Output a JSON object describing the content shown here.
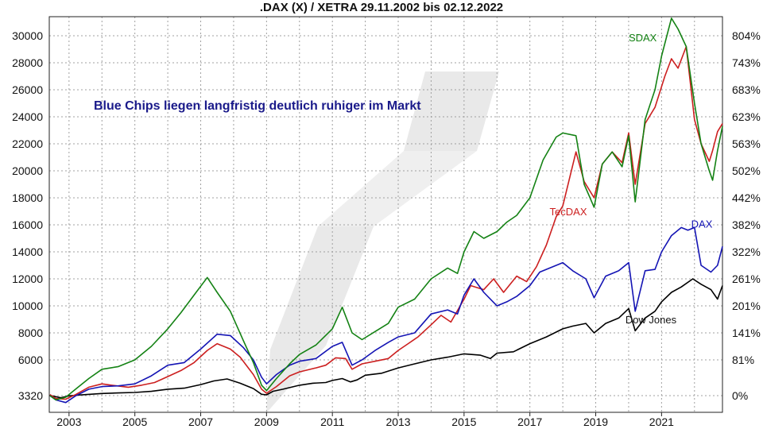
{
  "chart_data": {
    "type": "line",
    "title": ".DAX (X) / XETRA 29.11.2002 bis 02.12.2022",
    "annotation": "Blue Chips liegen langfristig deutlich ruhiger im Markt",
    "x_range": [
      2002.4,
      2022.85
    ],
    "x_ticks": [
      "2003",
      "2005",
      "2007",
      "2009",
      "2011",
      "2013",
      "2015",
      "2017",
      "2019",
      "2021"
    ],
    "y_left_ticks": [
      "30000",
      "28000",
      "26000",
      "24000",
      "22000",
      "20000",
      "18000",
      "16000",
      "14000",
      "12000",
      "10000",
      "8000",
      "6000",
      "3320"
    ],
    "y_right_ticks": [
      "804%",
      "743%",
      "683%",
      "623%",
      "563%",
      "502%",
      "442%",
      "382%",
      "322%",
      "261%",
      "201%",
      "141%",
      "81%",
      "0%"
    ],
    "grid": true,
    "series": [
      {
        "name": "Dow Jones",
        "color": "#000000",
        "label_x": 2019.9,
        "label_y": 8700,
        "x": [
          2002.42,
          2002.75,
          2003.0,
          2003.2,
          2003.5,
          2004.0,
          2004.5,
          2005.0,
          2005.5,
          2006.0,
          2006.5,
          2007.0,
          2007.4,
          2007.8,
          2008.2,
          2008.6,
          2008.85,
          2009.0,
          2009.2,
          2009.5,
          2010.0,
          2010.4,
          2010.8,
          2011.0,
          2011.3,
          2011.55,
          2011.75,
          2012.0,
          2012.5,
          2013.0,
          2013.5,
          2014.0,
          2014.5,
          2015.0,
          2015.5,
          2015.8,
          2016.0,
          2016.5,
          2017.0,
          2017.5,
          2018.0,
          2018.3,
          2018.7,
          2018.95,
          2019.3,
          2019.7,
          2020.0,
          2020.2,
          2020.5,
          2020.8,
          2021.0,
          2021.3,
          2021.6,
          2021.95,
          2022.2,
          2022.5,
          2022.7,
          2022.85
        ],
        "y": [
          3330,
          3160,
          3300,
          3350,
          3400,
          3480,
          3520,
          3560,
          3640,
          3800,
          3880,
          4150,
          4420,
          4570,
          4250,
          3850,
          3420,
          3380,
          3650,
          3800,
          4100,
          4250,
          4300,
          4460,
          4600,
          4350,
          4500,
          4850,
          5000,
          5400,
          5700,
          6000,
          6200,
          6450,
          6350,
          6100,
          6500,
          6600,
          7200,
          7700,
          8300,
          8500,
          8700,
          8000,
          8700,
          9100,
          9800,
          8150,
          9100,
          9600,
          10300,
          11000,
          11400,
          12000,
          11600,
          11200,
          10500,
          11500
        ]
      },
      {
        "name": "TecDAX",
        "color": "#cc1f1f",
        "label_x": 2017.6,
        "label_y": 16700,
        "x": [
          2002.42,
          2002.6,
          2002.9,
          2003.2,
          2003.6,
          2004.0,
          2004.3,
          2004.8,
          2005.2,
          2005.6,
          2006.0,
          2006.4,
          2006.8,
          2007.2,
          2007.5,
          2007.9,
          2008.2,
          2008.6,
          2008.85,
          2009.0,
          2009.3,
          2009.7,
          2010.0,
          2010.5,
          2010.8,
          2011.1,
          2011.4,
          2011.6,
          2011.9,
          2012.3,
          2012.7,
          2013.0,
          2013.3,
          2013.6,
          2014.0,
          2014.3,
          2014.6,
          2015.0,
          2015.2,
          2015.6,
          2015.9,
          2016.2,
          2016.6,
          2016.9,
          2017.2,
          2017.5,
          2017.8,
          2018.0,
          2018.4,
          2018.65,
          2018.95,
          2019.2,
          2019.5,
          2019.8,
          2020.0,
          2020.2,
          2020.5,
          2020.8,
          2021.1,
          2021.3,
          2021.5,
          2021.75,
          2022.0,
          2022.2,
          2022.45,
          2022.55,
          2022.7,
          2022.85
        ],
        "y": [
          3400,
          3100,
          3050,
          3400,
          3950,
          4200,
          4100,
          3950,
          4100,
          4300,
          4750,
          5200,
          5800,
          6700,
          7200,
          6800,
          6200,
          4900,
          3800,
          3500,
          4000,
          4800,
          5100,
          5400,
          5600,
          6150,
          6100,
          5300,
          5700,
          5900,
          6100,
          6700,
          7200,
          7700,
          8600,
          9300,
          8800,
          10500,
          11500,
          11200,
          12000,
          11000,
          12200,
          11800,
          12900,
          14500,
          16600,
          17400,
          21400,
          19200,
          18000,
          20500,
          21400,
          20600,
          22800,
          19000,
          23500,
          24700,
          27000,
          28300,
          27600,
          29200,
          23800,
          22000,
          20700,
          21500,
          22900,
          23500
        ]
      },
      {
        "name": "DAX",
        "color": "#1414b4",
        "label_x": 2021.9,
        "label_y": 15800,
        "x": [
          2002.42,
          2002.6,
          2002.9,
          2003.2,
          2003.6,
          2004.0,
          2004.5,
          2005.0,
          2005.5,
          2006.0,
          2006.5,
          2007.0,
          2007.5,
          2007.9,
          2008.3,
          2008.6,
          2008.85,
          2009.0,
          2009.3,
          2009.7,
          2010.0,
          2010.5,
          2011.0,
          2011.3,
          2011.6,
          2011.9,
          2012.3,
          2012.7,
          2013.0,
          2013.5,
          2014.0,
          2014.5,
          2014.8,
          2015.0,
          2015.3,
          2015.6,
          2016.0,
          2016.3,
          2016.6,
          2017.0,
          2017.3,
          2017.6,
          2018.0,
          2018.3,
          2018.7,
          2018.95,
          2019.3,
          2019.7,
          2020.0,
          2020.2,
          2020.5,
          2020.8,
          2021.0,
          2021.3,
          2021.6,
          2021.8,
          2022.0,
          2022.2,
          2022.5,
          2022.7,
          2022.85
        ],
        "y": [
          3320,
          3000,
          2800,
          3300,
          3800,
          4000,
          4050,
          4200,
          4800,
          5600,
          5800,
          6800,
          7900,
          7800,
          6900,
          6000,
          4700,
          4200,
          4900,
          5600,
          5900,
          6100,
          7000,
          7300,
          5600,
          6000,
          6700,
          7300,
          7700,
          8000,
          9400,
          9700,
          9400,
          10800,
          12000,
          11000,
          10000,
          10300,
          10700,
          11500,
          12500,
          12800,
          13200,
          12600,
          12000,
          10600,
          12200,
          12600,
          13200,
          9600,
          12600,
          12700,
          14000,
          15200,
          15800,
          15600,
          15800,
          13000,
          12500,
          13000,
          14400
        ]
      },
      {
        "name": "SDAX",
        "color": "#148214",
        "label_x": 2020.0,
        "label_y": 29600,
        "x": [
          2002.42,
          2002.6,
          2002.9,
          2003.2,
          2003.6,
          2004.0,
          2004.5,
          2005.0,
          2005.5,
          2006.0,
          2006.4,
          2006.8,
          2007.2,
          2007.5,
          2007.9,
          2008.3,
          2008.6,
          2008.85,
          2009.0,
          2009.3,
          2009.7,
          2010.0,
          2010.5,
          2011.0,
          2011.3,
          2011.6,
          2011.9,
          2012.3,
          2012.7,
          2013.0,
          2013.5,
          2014.0,
          2014.5,
          2014.8,
          2015.0,
          2015.3,
          2015.6,
          2016.0,
          2016.3,
          2016.6,
          2017.0,
          2017.4,
          2017.8,
          2018.0,
          2018.4,
          2018.65,
          2018.95,
          2019.2,
          2019.5,
          2019.8,
          2020.0,
          2020.2,
          2020.5,
          2020.8,
          2021.0,
          2021.3,
          2021.5,
          2021.75,
          2022.0,
          2022.2,
          2022.45,
          2022.55,
          2022.7,
          2022.85
        ],
        "y": [
          3320,
          3000,
          3200,
          3800,
          4600,
          5300,
          5500,
          6000,
          7000,
          8300,
          9500,
          10800,
          12100,
          11000,
          9600,
          7400,
          5800,
          4100,
          3700,
          4600,
          5700,
          6400,
          7100,
          8300,
          9900,
          8000,
          7500,
          8100,
          8700,
          9900,
          10500,
          12000,
          12800,
          12400,
          14000,
          15500,
          15000,
          15500,
          16200,
          16700,
          18000,
          20800,
          22500,
          22800,
          22600,
          19000,
          17300,
          20500,
          21400,
          20300,
          22600,
          17700,
          23800,
          26000,
          28500,
          31300,
          30500,
          29200,
          25000,
          22000,
          20000,
          19300,
          21500,
          23300
        ]
      }
    ]
  }
}
